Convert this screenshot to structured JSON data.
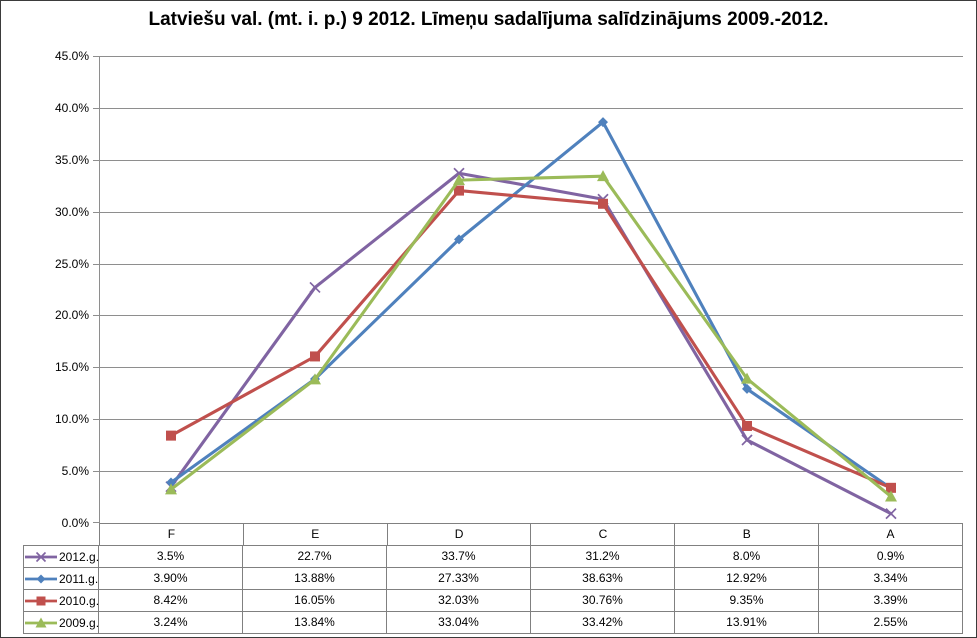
{
  "chart_data": {
    "type": "line",
    "title": "Latviešu val. (mt. i. p.) 9 2012. Līmeņu sadalījuma salīdzinājums 2009.-2012.",
    "categories": [
      "F",
      "E",
      "D",
      "C",
      "B",
      "A"
    ],
    "series": [
      {
        "name": "2012.g.",
        "color": "#8064A2",
        "marker": "x",
        "values": [
          3.5,
          22.7,
          33.7,
          31.2,
          8.0,
          0.9
        ],
        "display": [
          "3.5%",
          "22.7%",
          "33.7%",
          "31.2%",
          "8.0%",
          "0.9%"
        ]
      },
      {
        "name": "2011.g.",
        "color": "#4F81BD",
        "marker": "diamond",
        "values": [
          3.9,
          13.88,
          27.33,
          38.63,
          12.92,
          3.34
        ],
        "display": [
          "3.90%",
          "13.88%",
          "27.33%",
          "38.63%",
          "12.92%",
          "3.34%"
        ]
      },
      {
        "name": "2010.g.",
        "color": "#C0504D",
        "marker": "square",
        "values": [
          8.42,
          16.05,
          32.03,
          30.76,
          9.35,
          3.39
        ],
        "display": [
          "8.42%",
          "16.05%",
          "32.03%",
          "30.76%",
          "9.35%",
          "3.39%"
        ]
      },
      {
        "name": "2009.g.",
        "color": "#9BBB59",
        "marker": "triangle",
        "values": [
          3.24,
          13.84,
          33.04,
          33.42,
          13.91,
          2.55
        ],
        "display": [
          "3.24%",
          "13.84%",
          "33.04%",
          "33.42%",
          "13.91%",
          "2.55%"
        ]
      }
    ],
    "ylim": [
      0,
      45
    ],
    "ytick_step": 5,
    "ytick_labels": [
      "0.0%",
      "5.0%",
      "10.0%",
      "15.0%",
      "20.0%",
      "25.0%",
      "30.0%",
      "35.0%",
      "40.0%",
      "45.0%"
    ],
    "grid": true,
    "grid_color": "#8E8E8E",
    "table_border_color": "#808080",
    "legend_position": "table-left"
  }
}
